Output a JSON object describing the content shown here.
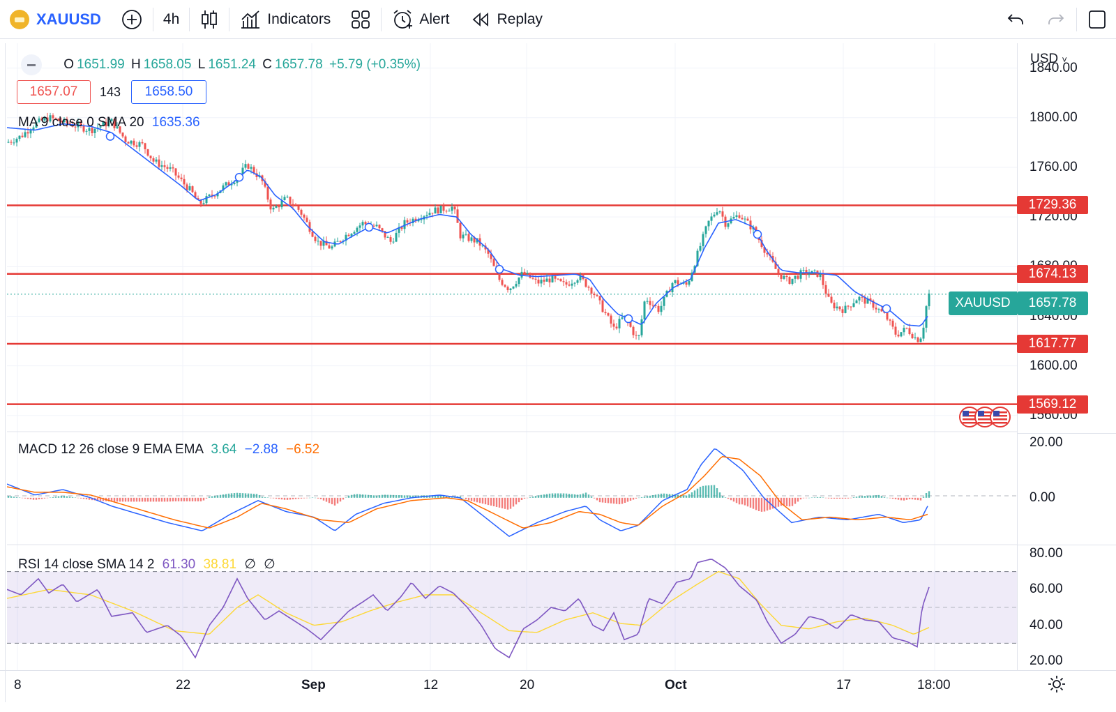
{
  "toolbar": {
    "symbol": "XAUUSD",
    "interval": "4h",
    "indicators_label": "Indicators",
    "alert_label": "Alert",
    "replay_label": "Replay"
  },
  "legend": {
    "open_label": "O",
    "open": "1651.99",
    "high_label": "H",
    "high": "1658.05",
    "low_label": "L",
    "low": "1651.24",
    "close_label": "C",
    "close": "1657.78",
    "change": "+5.79 (+0.35%)",
    "bid": "1657.07",
    "spread": "143",
    "ask": "1658.50",
    "ma_label": "MA 9 close 0 SMA 20",
    "ma_value": "1635.36",
    "macd_label": "MACD 12 26 close 9 EMA EMA",
    "macd_hist": "3.64",
    "macd_line": "−2.88",
    "macd_signal": "−6.52",
    "rsi_label": "RSI 14 close SMA 14 2",
    "rsi_value": "61.30",
    "rsi_sma": "38.81",
    "rsi_extra1": "∅",
    "rsi_extra2": "∅"
  },
  "price_axis": {
    "currency": "USD",
    "ticks": [
      "1840.00",
      "1800.00",
      "1760.00",
      "1720.00",
      "1680.00",
      "1640.00",
      "1600.00",
      "1560.00"
    ],
    "symbol_tag": "XAUUSD",
    "last_price": "1657.78",
    "levels": [
      "1729.36",
      "1674.13",
      "1617.77",
      "1569.12"
    ]
  },
  "macd_axis": {
    "ticks": [
      "20.00",
      "0.00"
    ]
  },
  "rsi_axis": {
    "ticks": [
      "80.00",
      "60.00",
      "40.00",
      "20.00"
    ]
  },
  "time_axis": {
    "ticks": [
      "8",
      "22",
      "Sep",
      "12",
      "20",
      "Oct",
      "17",
      "18:00"
    ]
  },
  "colors": {
    "up": "#26a69a",
    "down": "#ef5350",
    "level": "#e53935",
    "ma": "#2962ff",
    "macd": "#2962ff",
    "signal": "#ff6d00",
    "rsi": "#7e57c2",
    "rsi_sma": "#fdd835"
  },
  "chart_data": {
    "type": "candlestick",
    "symbol": "XAUUSD",
    "interval": "4h",
    "price_range": [
      1547,
      1860
    ],
    "ma_path_points": [
      [
        0,
        1792
      ],
      [
        40,
        1790
      ],
      [
        80,
        1795
      ],
      [
        120,
        1793
      ],
      [
        150,
        1788
      ],
      [
        180,
        1775
      ],
      [
        215,
        1760
      ],
      [
        250,
        1745
      ],
      [
        275,
        1733
      ],
      [
        300,
        1738
      ],
      [
        325,
        1748
      ],
      [
        345,
        1758
      ],
      [
        365,
        1752
      ],
      [
        385,
        1737
      ],
      [
        410,
        1727
      ],
      [
        430,
        1713
      ],
      [
        455,
        1700
      ],
      [
        475,
        1698
      ],
      [
        500,
        1706
      ],
      [
        520,
        1712
      ],
      [
        545,
        1707
      ],
      [
        565,
        1712
      ],
      [
        590,
        1718
      ],
      [
        620,
        1722
      ],
      [
        645,
        1720
      ],
      [
        665,
        1706
      ],
      [
        690,
        1694
      ],
      [
        710,
        1678
      ],
      [
        735,
        1673
      ],
      [
        760,
        1672
      ],
      [
        790,
        1673
      ],
      [
        815,
        1674
      ],
      [
        835,
        1670
      ],
      [
        855,
        1654
      ],
      [
        875,
        1642
      ],
      [
        895,
        1637
      ],
      [
        910,
        1633
      ],
      [
        930,
        1650
      ],
      [
        955,
        1663
      ],
      [
        980,
        1670
      ],
      [
        1000,
        1695
      ],
      [
        1020,
        1715
      ],
      [
        1045,
        1718
      ],
      [
        1070,
        1712
      ],
      [
        1090,
        1692
      ],
      [
        1110,
        1677
      ],
      [
        1135,
        1675
      ],
      [
        1160,
        1675
      ],
      [
        1190,
        1673
      ],
      [
        1215,
        1660
      ],
      [
        1240,
        1652
      ],
      [
        1265,
        1645
      ],
      [
        1290,
        1633
      ],
      [
        1310,
        1632
      ],
      [
        1320,
        1640
      ]
    ],
    "price_points": [
      [
        0,
        1780
      ],
      [
        20,
        1785
      ],
      [
        40,
        1795
      ],
      [
        60,
        1800
      ],
      [
        90,
        1795
      ],
      [
        120,
        1790
      ],
      [
        150,
        1797
      ],
      [
        170,
        1782
      ],
      [
        195,
        1778
      ],
      [
        210,
        1765
      ],
      [
        235,
        1758
      ],
      [
        265,
        1740
      ],
      [
        275,
        1730
      ],
      [
        300,
        1740
      ],
      [
        330,
        1752
      ],
      [
        345,
        1762
      ],
      [
        365,
        1750
      ],
      [
        380,
        1725
      ],
      [
        400,
        1735
      ],
      [
        420,
        1725
      ],
      [
        445,
        1700
      ],
      [
        465,
        1695
      ],
      [
        485,
        1705
      ],
      [
        510,
        1715
      ],
      [
        530,
        1712
      ],
      [
        550,
        1700
      ],
      [
        570,
        1715
      ],
      [
        590,
        1720
      ],
      [
        610,
        1725
      ],
      [
        640,
        1728
      ],
      [
        650,
        1705
      ],
      [
        675,
        1700
      ],
      [
        690,
        1690
      ],
      [
        705,
        1670
      ],
      [
        720,
        1662
      ],
      [
        740,
        1675
      ],
      [
        760,
        1667
      ],
      [
        780,
        1670
      ],
      [
        800,
        1665
      ],
      [
        820,
        1672
      ],
      [
        840,
        1660
      ],
      [
        855,
        1645
      ],
      [
        870,
        1630
      ],
      [
        885,
        1640
      ],
      [
        905,
        1620
      ],
      [
        915,
        1655
      ],
      [
        935,
        1645
      ],
      [
        955,
        1668
      ],
      [
        975,
        1665
      ],
      [
        990,
        1690
      ],
      [
        1005,
        1715
      ],
      [
        1020,
        1728
      ],
      [
        1030,
        1715
      ],
      [
        1050,
        1722
      ],
      [
        1070,
        1710
      ],
      [
        1090,
        1690
      ],
      [
        1105,
        1675
      ],
      [
        1120,
        1668
      ],
      [
        1140,
        1675
      ],
      [
        1165,
        1674
      ],
      [
        1180,
        1650
      ],
      [
        1200,
        1645
      ],
      [
        1220,
        1655
      ],
      [
        1240,
        1650
      ],
      [
        1260,
        1640
      ],
      [
        1275,
        1625
      ],
      [
        1290,
        1630
      ],
      [
        1305,
        1621
      ],
      [
        1312,
        1625
      ],
      [
        1318,
        1648
      ],
      [
        1322,
        1657.78
      ]
    ],
    "levels": [
      1729.36,
      1674.13,
      1617.77,
      1569.12
    ],
    "macd_range": [
      -17,
      24
    ],
    "macd_points": [
      [
        0,
        5
      ],
      [
        40,
        1
      ],
      [
        80,
        3
      ],
      [
        120,
        0
      ],
      [
        150,
        -3
      ],
      [
        190,
        -6
      ],
      [
        230,
        -9
      ],
      [
        280,
        -12
      ],
      [
        320,
        -6
      ],
      [
        360,
        -1
      ],
      [
        400,
        -5
      ],
      [
        440,
        -7
      ],
      [
        470,
        -12
      ],
      [
        500,
        -6
      ],
      [
        540,
        -2
      ],
      [
        580,
        0
      ],
      [
        620,
        1
      ],
      [
        650,
        0
      ],
      [
        690,
        -8
      ],
      [
        720,
        -14
      ],
      [
        760,
        -9
      ],
      [
        800,
        -5
      ],
      [
        830,
        -3
      ],
      [
        850,
        -8
      ],
      [
        880,
        -12
      ],
      [
        905,
        -10
      ],
      [
        940,
        -1
      ],
      [
        975,
        3
      ],
      [
        995,
        12
      ],
      [
        1015,
        18
      ],
      [
        1035,
        14
      ],
      [
        1055,
        10
      ],
      [
        1085,
        0
      ],
      [
        1125,
        -9
      ],
      [
        1165,
        -7
      ],
      [
        1205,
        -8
      ],
      [
        1250,
        -6
      ],
      [
        1285,
        -9
      ],
      [
        1310,
        -8
      ],
      [
        1320,
        -3
      ]
    ],
    "signal_points": [
      [
        0,
        4
      ],
      [
        40,
        2
      ],
      [
        80,
        2
      ],
      [
        120,
        1
      ],
      [
        160,
        -2
      ],
      [
        200,
        -5
      ],
      [
        240,
        -8
      ],
      [
        290,
        -11
      ],
      [
        330,
        -7
      ],
      [
        365,
        -2
      ],
      [
        400,
        -4
      ],
      [
        450,
        -8
      ],
      [
        490,
        -9
      ],
      [
        530,
        -4
      ],
      [
        580,
        -1
      ],
      [
        630,
        0
      ],
      [
        660,
        -1
      ],
      [
        700,
        -6
      ],
      [
        740,
        -11
      ],
      [
        780,
        -9
      ],
      [
        820,
        -5
      ],
      [
        850,
        -6
      ],
      [
        880,
        -9
      ],
      [
        905,
        -10
      ],
      [
        940,
        -3
      ],
      [
        975,
        2
      ],
      [
        1000,
        8
      ],
      [
        1025,
        15
      ],
      [
        1050,
        14
      ],
      [
        1080,
        8
      ],
      [
        1110,
        -2
      ],
      [
        1140,
        -8
      ],
      [
        1180,
        -7
      ],
      [
        1220,
        -8
      ],
      [
        1260,
        -7
      ],
      [
        1295,
        -8
      ],
      [
        1320,
        -6
      ]
    ],
    "rsi_range": [
      15,
      85
    ],
    "rsi_points": [
      [
        0,
        60
      ],
      [
        20,
        57
      ],
      [
        45,
        66
      ],
      [
        60,
        58
      ],
      [
        80,
        63
      ],
      [
        100,
        53
      ],
      [
        130,
        60
      ],
      [
        150,
        45
      ],
      [
        180,
        47
      ],
      [
        200,
        36
      ],
      [
        230,
        40
      ],
      [
        250,
        34
      ],
      [
        270,
        22
      ],
      [
        290,
        40
      ],
      [
        310,
        50
      ],
      [
        330,
        66
      ],
      [
        345,
        55
      ],
      [
        370,
        43
      ],
      [
        390,
        48
      ],
      [
        410,
        43
      ],
      [
        430,
        38
      ],
      [
        450,
        32
      ],
      [
        470,
        40
      ],
      [
        490,
        48
      ],
      [
        510,
        53
      ],
      [
        525,
        57
      ],
      [
        545,
        48
      ],
      [
        565,
        56
      ],
      [
        580,
        64
      ],
      [
        600,
        55
      ],
      [
        620,
        62
      ],
      [
        640,
        58
      ],
      [
        660,
        50
      ],
      [
        680,
        40
      ],
      [
        700,
        27
      ],
      [
        720,
        22
      ],
      [
        740,
        38
      ],
      [
        760,
        43
      ],
      [
        780,
        50
      ],
      [
        800,
        48
      ],
      [
        820,
        55
      ],
      [
        840,
        40
      ],
      [
        855,
        37
      ],
      [
        870,
        47
      ],
      [
        885,
        32
      ],
      [
        905,
        35
      ],
      [
        920,
        55
      ],
      [
        940,
        52
      ],
      [
        960,
        64
      ],
      [
        980,
        66
      ],
      [
        990,
        75
      ],
      [
        1010,
        77
      ],
      [
        1030,
        72
      ],
      [
        1050,
        62
      ],
      [
        1075,
        54
      ],
      [
        1090,
        42
      ],
      [
        1110,
        30
      ],
      [
        1130,
        35
      ],
      [
        1150,
        45
      ],
      [
        1170,
        43
      ],
      [
        1190,
        38
      ],
      [
        1210,
        46
      ],
      [
        1230,
        43
      ],
      [
        1250,
        42
      ],
      [
        1270,
        33
      ],
      [
        1290,
        31
      ],
      [
        1305,
        28
      ],
      [
        1312,
        50
      ],
      [
        1322,
        61.3
      ]
    ],
    "rsi_sma_points": [
      [
        0,
        55
      ],
      [
        60,
        60
      ],
      [
        120,
        57
      ],
      [
        180,
        48
      ],
      [
        240,
        37
      ],
      [
        290,
        35
      ],
      [
        330,
        50
      ],
      [
        360,
        57
      ],
      [
        400,
        47
      ],
      [
        440,
        40
      ],
      [
        480,
        42
      ],
      [
        520,
        48
      ],
      [
        560,
        53
      ],
      [
        600,
        57
      ],
      [
        640,
        57
      ],
      [
        680,
        47
      ],
      [
        720,
        37
      ],
      [
        760,
        36
      ],
      [
        800,
        43
      ],
      [
        840,
        47
      ],
      [
        880,
        41
      ],
      [
        910,
        40
      ],
      [
        950,
        53
      ],
      [
        990,
        63
      ],
      [
        1020,
        70
      ],
      [
        1050,
        66
      ],
      [
        1080,
        52
      ],
      [
        1110,
        40
      ],
      [
        1150,
        38
      ],
      [
        1190,
        42
      ],
      [
        1230,
        44
      ],
      [
        1270,
        40
      ],
      [
        1300,
        35
      ],
      [
        1322,
        38.81
      ]
    ]
  }
}
